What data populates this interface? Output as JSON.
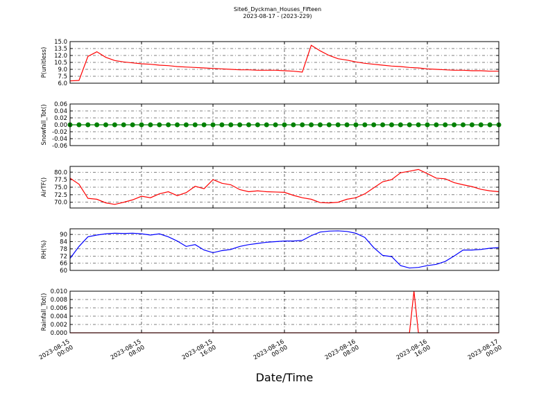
{
  "title": "Site6_Dyckman_Houses_Fifteen",
  "subtitle": "2023-08-17 - (2023-229)",
  "xlabel": "Date/Time",
  "xlim": [
    "2023-08-15 00:00",
    "2023-08-17 00:00"
  ],
  "xticks": [
    {
      "value": "2023-08-15 00:00",
      "label": "2023-08-15\n00:00"
    },
    {
      "value": "2023-08-15 08:00",
      "label": "2023-08-15\n08:00"
    },
    {
      "value": "2023-08-15 16:00",
      "label": "2023-08-15\n16:00"
    },
    {
      "value": "2023-08-16 00:00",
      "label": "2023-08-16\n00:00"
    },
    {
      "value": "2023-08-16 08:00",
      "label": "2023-08-16\n08:00"
    },
    {
      "value": "2023-08-16 16:00",
      "label": "2023-08-16\n16:00"
    },
    {
      "value": "2023-08-17 00:00",
      "label": "2023-08-17\n00:00"
    }
  ],
  "x": [
    "2023-08-15 00:00",
    "2023-08-15 01:00",
    "2023-08-15 02:00",
    "2023-08-15 03:00",
    "2023-08-15 04:00",
    "2023-08-15 05:00",
    "2023-08-15 06:00",
    "2023-08-15 07:00",
    "2023-08-15 08:00",
    "2023-08-15 09:00",
    "2023-08-15 10:00",
    "2023-08-15 11:00",
    "2023-08-15 12:00",
    "2023-08-15 13:00",
    "2023-08-15 14:00",
    "2023-08-15 15:00",
    "2023-08-15 16:00",
    "2023-08-15 17:00",
    "2023-08-15 18:00",
    "2023-08-15 19:00",
    "2023-08-15 20:00",
    "2023-08-15 21:00",
    "2023-08-15 22:00",
    "2023-08-15 23:00",
    "2023-08-16 00:00",
    "2023-08-16 01:00",
    "2023-08-16 02:00",
    "2023-08-16 03:00",
    "2023-08-16 04:00",
    "2023-08-16 05:00",
    "2023-08-16 06:00",
    "2023-08-16 07:00",
    "2023-08-16 08:00",
    "2023-08-16 09:00",
    "2023-08-16 10:00",
    "2023-08-16 11:00",
    "2023-08-16 12:00",
    "2023-08-16 13:00",
    "2023-08-16 14:00",
    "2023-08-16 15:00",
    "2023-08-16 16:00",
    "2023-08-16 17:00",
    "2023-08-16 18:00",
    "2023-08-16 19:00",
    "2023-08-16 20:00",
    "2023-08-16 21:00",
    "2023-08-16 22:00",
    "2023-08-16 23:00",
    "2023-08-17 00:00"
  ],
  "chart_data": [
    {
      "type": "line",
      "ylabel": "P(unitless)",
      "color": "#ff0000",
      "grid": true,
      "ylim": [
        6,
        15
      ],
      "yticks": [
        {
          "value": 6,
          "label": "6.0"
        },
        7.5,
        {
          "value": 9,
          "label": "9.0"
        },
        10.5,
        {
          "value": 12,
          "label": "12.0"
        },
        13.5,
        {
          "value": 15,
          "label": "15.0"
        }
      ],
      "values": [
        6.5,
        6.6,
        11.8,
        12.8,
        11.6,
        10.9,
        10.6,
        10.4,
        10.2,
        10.1,
        9.9,
        9.8,
        9.6,
        9.5,
        9.4,
        9.3,
        9.2,
        9.1,
        9.0,
        8.9,
        8.9,
        8.8,
        8.8,
        8.8,
        8.7,
        8.6,
        8.4,
        14.2,
        13.0,
        12.0,
        11.3,
        11.0,
        10.6,
        10.3,
        10.1,
        9.9,
        9.7,
        9.6,
        9.4,
        9.3,
        9.1,
        9.0,
        8.9,
        8.8,
        8.8,
        8.7,
        8.7,
        8.6,
        8.6
      ]
    },
    {
      "type": "line",
      "ylabel": "Snowfall_Tot()",
      "color": "#008000",
      "marker": "o",
      "grid": true,
      "ylim": [
        -0.06,
        0.06
      ],
      "yticks": [
        -0.06,
        -0.04,
        -0.02,
        {
          "value": 0,
          "label": "0.00"
        },
        0.02,
        0.04,
        0.06
      ],
      "values": [
        0,
        0,
        0,
        0,
        0,
        0,
        0,
        0,
        0,
        0,
        0,
        0,
        0,
        0,
        0,
        0,
        0,
        0,
        0,
        0,
        0,
        0,
        0,
        0,
        0,
        0,
        0,
        0,
        0,
        0,
        0,
        0,
        0,
        0,
        0,
        0,
        0,
        0,
        0,
        0,
        0,
        0,
        0,
        0,
        0,
        0,
        0,
        0,
        0
      ]
    },
    {
      "type": "line",
      "ylabel": "AirTF()",
      "color": "#ff0000",
      "grid": true,
      "ylim": [
        68.1,
        81.9
      ],
      "yticks": [
        {
          "value": 70,
          "label": "70.0"
        },
        72.5,
        {
          "value": 75,
          "label": "75.0"
        },
        77.5,
        {
          "value": 80,
          "label": "80.0"
        }
      ],
      "values": [
        78.0,
        76.0,
        71.3,
        71.0,
        69.8,
        69.3,
        70.0,
        70.8,
        72.0,
        71.5,
        72.8,
        73.5,
        72.2,
        73.2,
        75.3,
        74.5,
        77.5,
        76.3,
        75.8,
        74.2,
        73.5,
        73.8,
        73.5,
        73.4,
        73.3,
        72.3,
        71.5,
        71.0,
        69.9,
        69.8,
        70.0,
        71.0,
        71.5,
        72.8,
        74.8,
        76.8,
        77.5,
        79.8,
        80.3,
        80.9,
        79.5,
        78.0,
        77.8,
        76.5,
        75.8,
        75.2,
        74.3,
        73.8,
        73.5
      ]
    },
    {
      "type": "line",
      "ylabel": "RH(%)",
      "color": "#0000ff",
      "grid": true,
      "ylim": [
        60,
        94.7
      ],
      "yticks": [
        60,
        66,
        72,
        78,
        84,
        90
      ],
      "values": [
        70,
        80,
        88,
        89.5,
        90.5,
        91,
        90.8,
        91,
        90.5,
        89.5,
        90.5,
        88,
        84.5,
        80,
        81.5,
        77,
        74.8,
        76.5,
        77.5,
        80,
        81.5,
        82.5,
        83.5,
        84,
        84.5,
        84.5,
        85,
        89,
        92,
        92.8,
        93,
        92.5,
        91,
        87.5,
        79,
        72.5,
        71.5,
        64,
        62,
        62.5,
        64,
        65,
        67.5,
        72,
        77,
        77,
        77.5,
        78.5,
        79
      ]
    },
    {
      "type": "line",
      "ylabel": "Rainfall_Tot()",
      "color": "#ff0000",
      "grid": true,
      "ylim": [
        0,
        0.01
      ],
      "yticks": [
        {
          "value": 0,
          "label": "0.000"
        },
        {
          "value": 0.002,
          "label": "0.002"
        },
        {
          "value": 0.004,
          "label": "0.004"
        },
        {
          "value": 0.006,
          "label": "0.006"
        },
        {
          "value": 0.008,
          "label": "0.008"
        },
        {
          "value": 0.01,
          "label": "0.010"
        }
      ],
      "x": [
        "2023-08-15 00:00",
        "2023-08-16 14:00",
        "2023-08-16 14:30",
        "2023-08-16 15:00",
        "2023-08-17 00:00"
      ],
      "values": [
        0,
        0,
        0.01,
        0,
        0
      ]
    }
  ]
}
